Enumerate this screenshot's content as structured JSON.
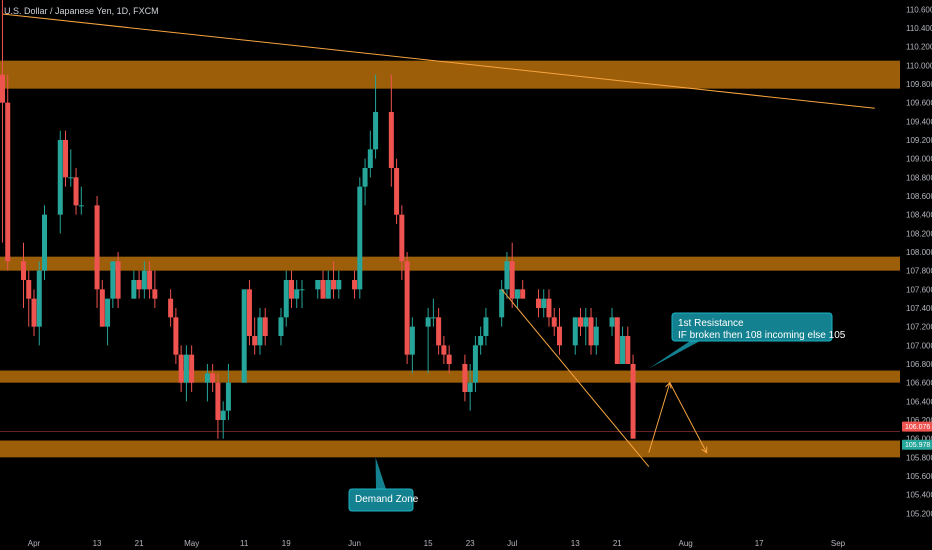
{
  "title": "U.S. Dollar / Japanese Yen, 1D, FXCM",
  "colors": {
    "background": "#000000",
    "up": "#26a69a",
    "down": "#ef5350",
    "zone": "#b86e0b",
    "trendline": "#f7a440",
    "callout": "#13818f",
    "callout_border": "#1bb2c4",
    "axis_text": "#b2b5be",
    "last_price_red": "#ef5350",
    "last_price_teal": "#26a69a"
  },
  "chart_data": {
    "type": "candlestick",
    "symbol": "U.S. Dollar / Japanese Yen",
    "interval": "1D",
    "source": "FXCM",
    "ylim": [
      105.0,
      110.7
    ],
    "price_ticks": [
      105.2,
      105.4,
      105.6,
      105.8,
      106.0,
      106.2,
      106.4,
      106.6,
      106.8,
      107.0,
      107.2,
      107.4,
      107.6,
      107.8,
      108.0,
      108.2,
      108.4,
      108.6,
      108.8,
      109.0,
      109.2,
      109.4,
      109.6,
      109.8,
      110.0,
      110.2,
      110.4,
      110.6
    ],
    "price_tick_labels": [
      "105.200",
      "105.400",
      "105.600",
      "105.800",
      "106.000",
      "106.200",
      "106.400",
      "106.600",
      "106.800",
      "107.000",
      "107.200",
      "107.400",
      "107.600",
      "107.800",
      "108.000",
      "108.200",
      "108.400",
      "108.600",
      "108.800",
      "109.000",
      "109.200",
      "109.400",
      "109.600",
      "109.800",
      "110.000",
      "110.200",
      "110.400",
      "110.600"
    ],
    "last_price_tags": [
      {
        "label": "106.076",
        "value": 106.076,
        "color": "red"
      },
      {
        "label": "105.978",
        "value": 105.978,
        "color": "teal"
      }
    ],
    "time_labels": [
      {
        "label": "Apr",
        "date": "2020-04-01"
      },
      {
        "label": "13",
        "date": "2020-04-13"
      },
      {
        "label": "21",
        "date": "2020-04-21"
      },
      {
        "label": "May",
        "date": "2020-05-01"
      },
      {
        "label": "11",
        "date": "2020-05-11"
      },
      {
        "label": "19",
        "date": "2020-05-19"
      },
      {
        "label": "Jun",
        "date": "2020-06-01"
      },
      {
        "label": "15",
        "date": "2020-06-15"
      },
      {
        "label": "23",
        "date": "2020-06-23"
      },
      {
        "label": "Jul",
        "date": "2020-07-01"
      },
      {
        "label": "13",
        "date": "2020-07-13"
      },
      {
        "label": "21",
        "date": "2020-07-21"
      },
      {
        "label": "Aug",
        "date": "2020-08-03"
      },
      {
        "label": "17",
        "date": "2020-08-17"
      },
      {
        "label": "Sep",
        "date": "2020-09-01"
      }
    ],
    "candles": [
      {
        "date": "2020-03-26",
        "o": 109.9,
        "h": 110.7,
        "l": 108.1,
        "c": 109.6
      },
      {
        "date": "2020-03-27",
        "o": 109.6,
        "h": 109.9,
        "l": 107.8,
        "c": 107.9
      },
      {
        "date": "2020-03-30",
        "o": 107.9,
        "h": 108.1,
        "l": 107.4,
        "c": 107.7
      },
      {
        "date": "2020-03-31",
        "o": 107.7,
        "h": 107.8,
        "l": 107.2,
        "c": 107.5
      },
      {
        "date": "2020-04-01",
        "o": 107.5,
        "h": 107.6,
        "l": 107.1,
        "c": 107.2
      },
      {
        "date": "2020-04-02",
        "o": 107.2,
        "h": 107.9,
        "l": 107.0,
        "c": 107.8
      },
      {
        "date": "2020-04-03",
        "o": 107.8,
        "h": 108.5,
        "l": 107.7,
        "c": 108.4
      },
      {
        "date": "2020-04-06",
        "o": 108.4,
        "h": 109.3,
        "l": 108.2,
        "c": 109.2
      },
      {
        "date": "2020-04-07",
        "o": 109.2,
        "h": 109.3,
        "l": 108.7,
        "c": 108.8
      },
      {
        "date": "2020-04-08",
        "o": 108.8,
        "h": 109.1,
        "l": 108.7,
        "c": 108.8
      },
      {
        "date": "2020-04-09",
        "o": 108.8,
        "h": 108.9,
        "l": 108.4,
        "c": 108.5
      },
      {
        "date": "2020-04-10",
        "o": 108.5,
        "h": 108.7,
        "l": 108.4,
        "c": 108.5
      },
      {
        "date": "2020-04-13",
        "o": 108.5,
        "h": 108.6,
        "l": 107.4,
        "c": 107.6
      },
      {
        "date": "2020-04-14",
        "o": 107.6,
        "h": 107.7,
        "l": 107.2,
        "c": 107.2
      },
      {
        "date": "2020-04-15",
        "o": 107.2,
        "h": 107.5,
        "l": 107.0,
        "c": 107.5
      },
      {
        "date": "2020-04-16",
        "o": 107.5,
        "h": 107.9,
        "l": 107.4,
        "c": 107.9
      },
      {
        "date": "2020-04-17",
        "o": 107.9,
        "h": 108.0,
        "l": 107.4,
        "c": 107.5
      },
      {
        "date": "2020-04-20",
        "o": 107.5,
        "h": 107.8,
        "l": 107.5,
        "c": 107.7
      },
      {
        "date": "2020-04-21",
        "o": 107.7,
        "h": 107.8,
        "l": 107.5,
        "c": 107.6
      },
      {
        "date": "2020-04-22",
        "o": 107.6,
        "h": 107.9,
        "l": 107.5,
        "c": 107.8
      },
      {
        "date": "2020-04-23",
        "o": 107.8,
        "h": 107.9,
        "l": 107.5,
        "c": 107.6
      },
      {
        "date": "2020-04-24",
        "o": 107.6,
        "h": 107.8,
        "l": 107.4,
        "c": 107.5
      },
      {
        "date": "2020-04-27",
        "o": 107.5,
        "h": 107.6,
        "l": 107.2,
        "c": 107.3
      },
      {
        "date": "2020-04-28",
        "o": 107.3,
        "h": 107.4,
        "l": 106.8,
        "c": 106.9
      },
      {
        "date": "2020-04-29",
        "o": 106.9,
        "h": 107.0,
        "l": 106.5,
        "c": 106.6
      },
      {
        "date": "2020-04-30",
        "o": 106.6,
        "h": 107.0,
        "l": 106.4,
        "c": 106.9
      },
      {
        "date": "2020-05-01",
        "o": 106.9,
        "h": 107.0,
        "l": 106.5,
        "c": 106.6
      },
      {
        "date": "2020-05-04",
        "o": 106.6,
        "h": 106.8,
        "l": 106.4,
        "c": 106.7
      },
      {
        "date": "2020-05-05",
        "o": 106.7,
        "h": 106.8,
        "l": 106.5,
        "c": 106.6
      },
      {
        "date": "2020-05-06",
        "o": 106.6,
        "h": 106.7,
        "l": 106.0,
        "c": 106.2
      },
      {
        "date": "2020-05-07",
        "o": 106.2,
        "h": 106.4,
        "l": 106.0,
        "c": 106.3
      },
      {
        "date": "2020-05-08",
        "o": 106.3,
        "h": 106.8,
        "l": 106.2,
        "c": 106.6
      },
      {
        "date": "2020-05-11",
        "o": 106.6,
        "h": 107.6,
        "l": 106.6,
        "c": 107.6
      },
      {
        "date": "2020-05-12",
        "o": 107.6,
        "h": 107.7,
        "l": 107.0,
        "c": 107.1
      },
      {
        "date": "2020-05-13",
        "o": 107.1,
        "h": 107.3,
        "l": 106.9,
        "c": 107.0
      },
      {
        "date": "2020-05-14",
        "o": 107.0,
        "h": 107.4,
        "l": 106.9,
        "c": 107.3
      },
      {
        "date": "2020-05-15",
        "o": 107.3,
        "h": 107.4,
        "l": 107.0,
        "c": 107.1
      },
      {
        "date": "2020-05-18",
        "o": 107.1,
        "h": 107.4,
        "l": 107.0,
        "c": 107.3
      },
      {
        "date": "2020-05-19",
        "o": 107.3,
        "h": 107.8,
        "l": 107.2,
        "c": 107.7
      },
      {
        "date": "2020-05-20",
        "o": 107.7,
        "h": 107.8,
        "l": 107.4,
        "c": 107.5
      },
      {
        "date": "2020-05-21",
        "o": 107.5,
        "h": 107.7,
        "l": 107.4,
        "c": 107.6
      },
      {
        "date": "2020-05-22",
        "o": 107.6,
        "h": 107.7,
        "l": 107.4,
        "c": 107.6
      },
      {
        "date": "2020-05-25",
        "o": 107.6,
        "h": 107.7,
        "l": 107.5,
        "c": 107.7
      },
      {
        "date": "2020-05-26",
        "o": 107.7,
        "h": 107.8,
        "l": 107.5,
        "c": 107.5
      },
      {
        "date": "2020-05-27",
        "o": 107.5,
        "h": 107.8,
        "l": 107.5,
        "c": 107.7
      },
      {
        "date": "2020-05-28",
        "o": 107.7,
        "h": 107.9,
        "l": 107.5,
        "c": 107.6
      },
      {
        "date": "2020-05-29",
        "o": 107.6,
        "h": 107.8,
        "l": 107.5,
        "c": 107.7
      },
      {
        "date": "2020-06-01",
        "o": 107.7,
        "h": 107.8,
        "l": 107.5,
        "c": 107.6
      },
      {
        "date": "2020-06-02",
        "o": 107.6,
        "h": 108.8,
        "l": 107.5,
        "c": 108.7
      },
      {
        "date": "2020-06-03",
        "o": 108.7,
        "h": 109.0,
        "l": 108.5,
        "c": 108.9
      },
      {
        "date": "2020-06-04",
        "o": 108.9,
        "h": 109.3,
        "l": 108.8,
        "c": 109.1
      },
      {
        "date": "2020-06-05",
        "o": 109.1,
        "h": 109.9,
        "l": 109.0,
        "c": 109.5
      },
      {
        "date": "2020-06-08",
        "o": 109.5,
        "h": 109.9,
        "l": 108.7,
        "c": 108.9
      },
      {
        "date": "2020-06-09",
        "o": 108.9,
        "h": 109.0,
        "l": 108.3,
        "c": 108.4
      },
      {
        "date": "2020-06-10",
        "o": 108.4,
        "h": 108.5,
        "l": 107.7,
        "c": 107.9
      },
      {
        "date": "2020-06-11",
        "o": 107.9,
        "h": 108.0,
        "l": 106.8,
        "c": 106.9
      },
      {
        "date": "2020-06-12",
        "o": 106.9,
        "h": 107.3,
        "l": 106.7,
        "c": 107.2
      },
      {
        "date": "2020-06-15",
        "o": 107.2,
        "h": 107.4,
        "l": 106.7,
        "c": 107.3
      },
      {
        "date": "2020-06-16",
        "o": 107.3,
        "h": 107.5,
        "l": 107.2,
        "c": 107.3
      },
      {
        "date": "2020-06-17",
        "o": 107.3,
        "h": 107.4,
        "l": 106.9,
        "c": 107.0
      },
      {
        "date": "2020-06-18",
        "o": 107.0,
        "h": 107.1,
        "l": 106.8,
        "c": 106.9
      },
      {
        "date": "2020-06-19",
        "o": 106.9,
        "h": 107.0,
        "l": 106.7,
        "c": 106.8
      },
      {
        "date": "2020-06-22",
        "o": 106.8,
        "h": 106.9,
        "l": 106.4,
        "c": 106.5
      },
      {
        "date": "2020-06-23",
        "o": 106.5,
        "h": 106.8,
        "l": 106.3,
        "c": 106.6
      },
      {
        "date": "2020-06-24",
        "o": 106.6,
        "h": 107.1,
        "l": 106.5,
        "c": 107.0
      },
      {
        "date": "2020-06-25",
        "o": 107.0,
        "h": 107.2,
        "l": 106.9,
        "c": 107.1
      },
      {
        "date": "2020-06-26",
        "o": 107.1,
        "h": 107.4,
        "l": 107.0,
        "c": 107.3
      },
      {
        "date": "2020-06-29",
        "o": 107.3,
        "h": 107.7,
        "l": 107.2,
        "c": 107.6
      },
      {
        "date": "2020-06-30",
        "o": 107.6,
        "h": 108.0,
        "l": 107.5,
        "c": 107.9
      },
      {
        "date": "2020-07-01",
        "o": 107.9,
        "h": 108.1,
        "l": 107.4,
        "c": 107.5
      },
      {
        "date": "2020-07-02",
        "o": 107.5,
        "h": 107.6,
        "l": 107.4,
        "c": 107.6
      },
      {
        "date": "2020-07-03",
        "o": 107.6,
        "h": 107.7,
        "l": 107.5,
        "c": 107.5
      },
      {
        "date": "2020-07-06",
        "o": 107.5,
        "h": 107.6,
        "l": 107.3,
        "c": 107.4
      },
      {
        "date": "2020-07-07",
        "o": 107.4,
        "h": 107.6,
        "l": 107.3,
        "c": 107.5
      },
      {
        "date": "2020-07-08",
        "o": 107.5,
        "h": 107.6,
        "l": 107.2,
        "c": 107.3
      },
      {
        "date": "2020-07-09",
        "o": 107.3,
        "h": 107.4,
        "l": 107.1,
        "c": 107.2
      },
      {
        "date": "2020-07-10",
        "o": 107.2,
        "h": 107.4,
        "l": 106.9,
        "c": 107.0
      },
      {
        "date": "2020-07-13",
        "o": 107.0,
        "h": 107.3,
        "l": 106.9,
        "c": 107.3
      },
      {
        "date": "2020-07-14",
        "o": 107.3,
        "h": 107.4,
        "l": 107.1,
        "c": 107.2
      },
      {
        "date": "2020-07-15",
        "o": 107.2,
        "h": 107.4,
        "l": 107.0,
        "c": 107.3
      },
      {
        "date": "2020-07-16",
        "o": 107.3,
        "h": 107.4,
        "l": 106.9,
        "c": 107.0
      },
      {
        "date": "2020-07-17",
        "o": 107.0,
        "h": 107.3,
        "l": 106.9,
        "c": 107.2
      },
      {
        "date": "2020-07-20",
        "o": 107.2,
        "h": 107.4,
        "l": 107.1,
        "c": 107.3
      },
      {
        "date": "2020-07-21",
        "o": 107.3,
        "h": 107.3,
        "l": 106.8,
        "c": 106.8
      },
      {
        "date": "2020-07-22",
        "o": 106.8,
        "h": 107.2,
        "l": 106.8,
        "c": 107.1
      },
      {
        "date": "2020-07-23",
        "o": 107.1,
        "h": 107.2,
        "l": 106.8,
        "c": 106.8
      },
      {
        "date": "2020-07-24",
        "o": 106.8,
        "h": 106.9,
        "l": 106.0,
        "c": 106.0
      }
    ],
    "zones": [
      {
        "name": "top-resistance-zone",
        "from": 109.75,
        "to": 110.05
      },
      {
        "name": "middle-resistance-zone",
        "from": 107.8,
        "to": 107.95
      },
      {
        "name": "first-resistance-zone",
        "from": 106.6,
        "to": 106.73
      },
      {
        "name": "demand-zone",
        "from": 105.8,
        "to": 105.98
      }
    ],
    "trendlines": [
      {
        "from": {
          "date": "2020-03-26",
          "price": 110.55
        },
        "to": {
          "date": "2020-09-08",
          "price": 109.54
        }
      },
      {
        "from": {
          "date": "2020-06-29",
          "price": 107.6
        },
        "to": {
          "date": "2020-07-27",
          "price": 105.7
        }
      }
    ],
    "projection": [
      {
        "date": "2020-07-27",
        "price": 105.85
      },
      {
        "date": "2020-07-31",
        "price": 106.6
      },
      {
        "date": "2020-08-07",
        "price": 105.85
      }
    ],
    "annotations": [
      {
        "name": "demand-zone-callout",
        "lines": [
          "Demand Zone"
        ],
        "anchor": {
          "date": "2020-06-05",
          "price": 105.8
        }
      },
      {
        "name": "resistance-callout",
        "lines": [
          "1st Resistance",
          "IF broken then 108 incoming else 105"
        ],
        "anchor": {
          "date": "2020-07-27",
          "price": 106.75
        }
      }
    ]
  }
}
